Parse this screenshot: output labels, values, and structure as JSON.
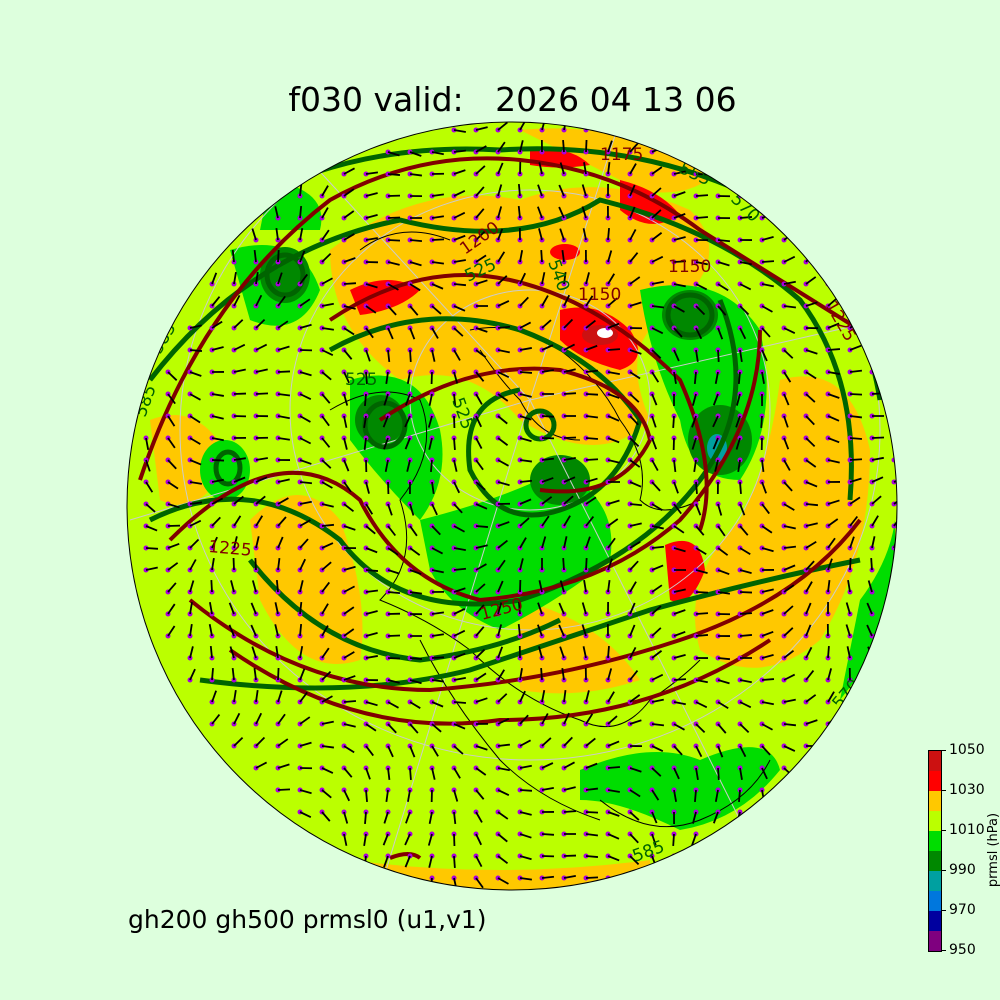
{
  "title": "f030 valid:   2026 04 13 06",
  "subtitle": "gh200 gh500 prmsl0 (u1,v1)",
  "colorbar": {
    "label": "prmsl (hPa)",
    "ticks": [
      "950",
      "970",
      "990",
      "1010",
      "1030",
      "1050"
    ],
    "levels": [
      950,
      960,
      970,
      980,
      990,
      1000,
      1010,
      1020,
      1030,
      1040,
      1050
    ],
    "colors": [
      "#7f007f",
      "#00009f",
      "#0077dd",
      "#00a0a0",
      "#008800",
      "#00dd00",
      "#bbff00",
      "#ffc800",
      "#ff0000",
      "#cc1111"
    ]
  },
  "contour_labels": {
    "gh500": [
      "555",
      "570",
      "525",
      "585",
      "585",
      "540",
      "525",
      "570",
      "525",
      "585",
      "525",
      "540",
      "555",
      "585"
    ],
    "gh200": [
      "1175",
      "1150",
      "1150",
      "1225",
      "1250",
      "1200",
      "1225",
      "1250"
    ]
  },
  "colors": {
    "gh500": "#006400",
    "gh200": "#800000",
    "wind_dots": "#aa00dd",
    "barbs": "#000000",
    "background": "#ddffdd"
  }
}
